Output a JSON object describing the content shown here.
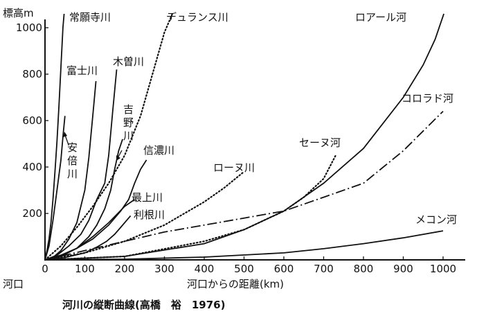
{
  "chart_data": {
    "type": "line",
    "title": "河川の縦断曲線(高橋　裕　1976)",
    "ylabel": "標高m",
    "xlabel": "河口からの距離(km)",
    "origin_label": "河口",
    "xlim": [
      0,
      1000
    ],
    "ylim": [
      0,
      1000
    ],
    "x_ticks": [
      0,
      100,
      200,
      300,
      400,
      500,
      600,
      700,
      800,
      900,
      1000
    ],
    "y_ticks": [
      200,
      400,
      600,
      800,
      1000
    ],
    "y_tick_labels": [
      "200",
      "400",
      "600",
      "800",
      "1000"
    ],
    "x_tick_labels": [
      "0",
      "100",
      "200",
      "300",
      "400",
      "500",
      "600",
      "700",
      "800",
      "900",
      "1000"
    ],
    "series": [
      {
        "name": "常願寺川",
        "style": "solid",
        "x": [
          0,
          5,
          10,
          15,
          20,
          25,
          30,
          35,
          40,
          45,
          50
        ],
        "y": [
          0,
          40,
          90,
          160,
          260,
          380,
          510,
          660,
          830,
          1000,
          1100
        ]
      },
      {
        "name": "安倍川",
        "style": "solid",
        "x": [
          0,
          10,
          20,
          30,
          40,
          45,
          50
        ],
        "y": [
          0,
          60,
          170,
          300,
          430,
          530,
          620
        ]
      },
      {
        "name": "富士川",
        "style": "solid",
        "x": [
          0,
          20,
          40,
          60,
          80,
          100,
          110,
          120,
          128
        ],
        "y": [
          0,
          10,
          40,
          90,
          160,
          300,
          440,
          620,
          770
        ]
      },
      {
        "name": "木曽川",
        "style": "solid",
        "x": [
          0,
          30,
          60,
          90,
          110,
          130,
          150,
          160,
          170,
          180
        ],
        "y": [
          0,
          20,
          60,
          110,
          170,
          260,
          330,
          450,
          640,
          820
        ]
      },
      {
        "name": "吉野川",
        "style": "solid",
        "x": [
          0,
          40,
          80,
          110,
          130,
          150,
          165,
          175,
          185,
          195
        ],
        "y": [
          0,
          15,
          50,
          100,
          150,
          220,
          300,
          390,
          470,
          520
        ]
      },
      {
        "name": "デュランス川",
        "style": "dotted",
        "x": [
          0,
          40,
          80,
          120,
          160,
          200,
          240,
          260,
          280,
          300,
          320
        ],
        "y": [
          0,
          60,
          140,
          230,
          330,
          450,
          620,
          740,
          860,
          980,
          1060
        ]
      },
      {
        "name": "信濃川",
        "style": "solid",
        "x": [
          0,
          40,
          80,
          120,
          160,
          190,
          210,
          225,
          240,
          255
        ],
        "y": [
          0,
          20,
          50,
          90,
          150,
          210,
          260,
          330,
          390,
          430
        ]
      },
      {
        "name": "最上川",
        "style": "solid",
        "x": [
          0,
          40,
          80,
          120,
          160,
          200,
          225
        ],
        "y": [
          0,
          20,
          50,
          100,
          160,
          230,
          260
        ]
      },
      {
        "name": "利根川",
        "style": "solid",
        "x": [
          0,
          50,
          100,
          130,
          155,
          175,
          190,
          205,
          215
        ],
        "y": [
          0,
          10,
          30,
          55,
          80,
          110,
          140,
          170,
          190
        ]
      },
      {
        "name": "ローヌ川",
        "style": "dotted",
        "x": [
          0,
          100,
          200,
          300,
          400,
          450,
          500
        ],
        "y": [
          0,
          30,
          80,
          150,
          250,
          310,
          380
        ]
      },
      {
        "name": "セーヌ河",
        "style": "dotted",
        "x": [
          0,
          200,
          400,
          500,
          600,
          650,
          700,
          730
        ],
        "y": [
          0,
          15,
          80,
          130,
          210,
          270,
          350,
          450
        ]
      },
      {
        "name": "ロアール河",
        "style": "solid",
        "x": [
          0,
          200,
          400,
          500,
          600,
          700,
          800,
          900,
          950,
          980,
          1000
        ],
        "y": [
          0,
          15,
          70,
          130,
          210,
          330,
          480,
          700,
          840,
          950,
          1050
        ]
      },
      {
        "name": "コロラド河",
        "style": "dashdot",
        "x": [
          0,
          100,
          200,
          300,
          400,
          500,
          600,
          700,
          800,
          900,
          1000
        ],
        "y": [
          0,
          40,
          80,
          120,
          150,
          180,
          210,
          270,
          330,
          470,
          640
        ]
      },
      {
        "name": "メコン河",
        "style": "solid",
        "x": [
          0,
          200,
          400,
          600,
          700,
          800,
          900,
          1000
        ],
        "y": [
          0,
          3,
          12,
          30,
          48,
          70,
          95,
          125
        ]
      }
    ]
  }
}
